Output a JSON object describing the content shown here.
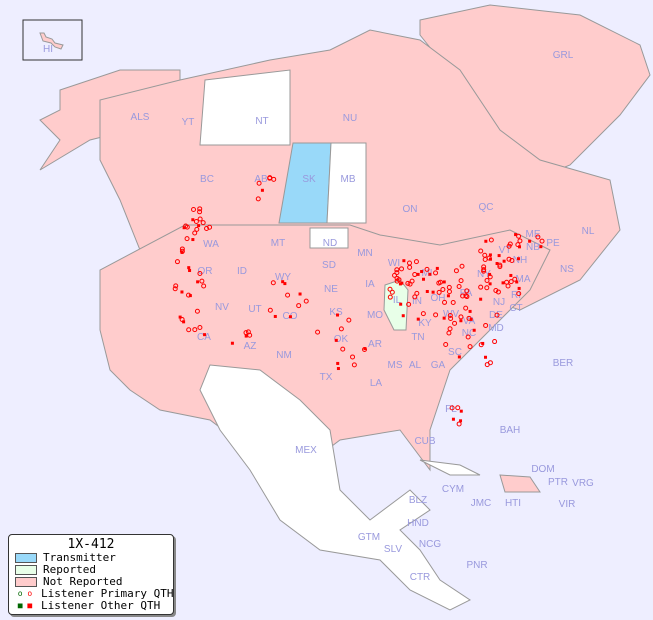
{
  "legend": {
    "title": "1X-412",
    "items": [
      {
        "label": "Transmitter",
        "color": "#99d9f9"
      },
      {
        "label": "Reported",
        "color": "#e8ffe8"
      },
      {
        "label": "Not Reported",
        "color": "#ffcccc"
      },
      {
        "label": "Listener Primary QTH",
        "marker": "circle",
        "colors": [
          "#006600",
          "#ff0000"
        ]
      },
      {
        "label": "Listener Other QTH",
        "marker": "square",
        "colors": [
          "#006600",
          "#ff0000"
        ]
      }
    ]
  },
  "colors": {
    "ocean": "#eeeeff",
    "not_reported": "#ffcccc",
    "transmitter": "#99d9f9",
    "reported": "#e8ffe8",
    "no_data": "#ffffff",
    "listener": "#ff0000"
  },
  "region_labels": [
    "HI",
    "GRL",
    "ALS",
    "YT",
    "NT",
    "NU",
    "BC",
    "AB",
    "SK",
    "MB",
    "ON",
    "QC",
    "NL",
    "NS",
    "NB",
    "PE",
    "WA",
    "OR",
    "CA",
    "ID",
    "NV",
    "MT",
    "WY",
    "UT",
    "AZ",
    "CO",
    "NM",
    "ND",
    "SD",
    "NE",
    "KS",
    "OK",
    "TX",
    "MN",
    "IA",
    "MO",
    "AR",
    "LA",
    "WI",
    "IL",
    "MI",
    "IN",
    "OH",
    "KY",
    "TN",
    "MS",
    "AL",
    "GA",
    "FL",
    "SC",
    "NC",
    "VA",
    "WV",
    "PA",
    "NY",
    "VT",
    "NH",
    "ME",
    "MA",
    "CT",
    "RI",
    "NJ",
    "DE",
    "MD",
    "BER",
    "BAH",
    "CUB",
    "MEX",
    "CYM",
    "JMC",
    "HTI",
    "DOM",
    "PTR",
    "VRG",
    "VIR",
    "BLZ",
    "GTM",
    "HND",
    "SLV",
    "NCG",
    "CTR",
    "PNR"
  ]
}
